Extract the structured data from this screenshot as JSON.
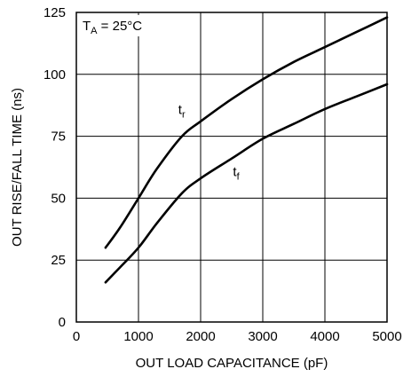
{
  "chart_data": {
    "type": "line",
    "xlabel": "OUT LOAD CAPACITANCE (pF)",
    "ylabel": "OUT RISE/FALL TIME (ns)",
    "xlim": [
      0,
      5000
    ],
    "ylim": [
      0,
      125
    ],
    "x_ticks": [
      "0",
      "1000",
      "2000",
      "3000",
      "4000",
      "5000"
    ],
    "y_ticks": [
      "0",
      "25",
      "50",
      "75",
      "100",
      "125"
    ],
    "grid": true,
    "condition": {
      "main": "T",
      "sub": "A",
      "rest": " = 25°C"
    },
    "series": [
      {
        "name": "t_r",
        "label": {
          "main": "t",
          "sub": "r"
        },
        "x": [
          470,
          700,
          1000,
          1300,
          1700,
          2000,
          2500,
          3000,
          3500,
          4000,
          4500,
          5000
        ],
        "y": [
          30,
          38,
          50,
          62,
          75,
          81,
          90,
          98,
          105,
          111,
          117,
          123
        ]
      },
      {
        "name": "t_f",
        "label": {
          "main": "t",
          "sub": "f"
        },
        "x": [
          470,
          700,
          1000,
          1300,
          1700,
          2000,
          2500,
          3000,
          3500,
          4000,
          4500,
          5000
        ],
        "y": [
          16,
          22,
          30,
          40,
          52,
          58,
          66,
          74,
          80,
          86,
          91,
          96
        ]
      }
    ]
  }
}
